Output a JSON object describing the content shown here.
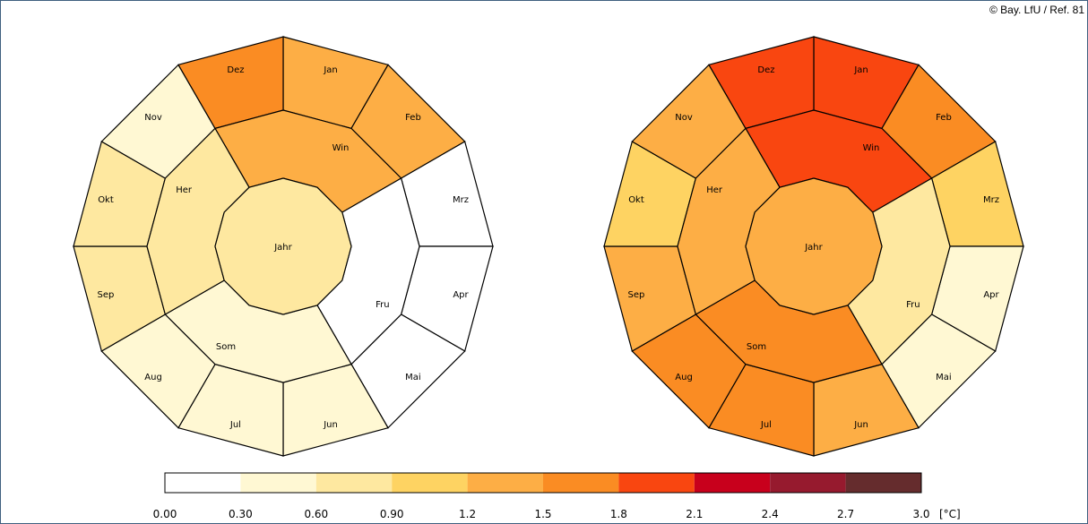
{
  "copyright": "© Bay. LfU / Ref. 81",
  "chart_data": {
    "type": "heatmap",
    "unit": "[°C]",
    "colorbar": {
      "ticks": [
        "0.00",
        "0.30",
        "0.60",
        "0.90",
        "1.2",
        "1.5",
        "1.8",
        "2.1",
        "2.4",
        "2.7",
        "3.0"
      ],
      "colors": [
        "#ffffff",
        "#fff8d3",
        "#fee8a0",
        "#fed362",
        "#fdae45",
        "#fa8c23",
        "#f94610",
        "#c8001c",
        "#961a2e",
        "#652c2d"
      ]
    },
    "panels": [
      {
        "months": [
          {
            "label": "Jan",
            "value": 1.35
          },
          {
            "label": "Feb",
            "value": 1.35
          },
          {
            "label": "Mrz",
            "value": 0.15
          },
          {
            "label": "Apr",
            "value": 0.15
          },
          {
            "label": "Mai",
            "value": 0.15
          },
          {
            "label": "Jun",
            "value": 0.45
          },
          {
            "label": "Jul",
            "value": 0.45
          },
          {
            "label": "Aug",
            "value": 0.45
          },
          {
            "label": "Sep",
            "value": 0.75
          },
          {
            "label": "Okt",
            "value": 0.75
          },
          {
            "label": "Nov",
            "value": 0.45
          },
          {
            "label": "Dez",
            "value": 1.65
          }
        ],
        "seasons": [
          {
            "label": "Win",
            "value": 1.35
          },
          {
            "label": "Fru",
            "value": 0.15
          },
          {
            "label": "Som",
            "value": 0.45
          },
          {
            "label": "Her",
            "value": 0.75
          }
        ],
        "year": {
          "label": "Jahr",
          "value": 0.75
        }
      },
      {
        "months": [
          {
            "label": "Jan",
            "value": 1.95
          },
          {
            "label": "Feb",
            "value": 1.65
          },
          {
            "label": "Mrz",
            "value": 1.05
          },
          {
            "label": "Apr",
            "value": 0.45
          },
          {
            "label": "Mai",
            "value": 0.45
          },
          {
            "label": "Jun",
            "value": 1.35
          },
          {
            "label": "Jul",
            "value": 1.65
          },
          {
            "label": "Aug",
            "value": 1.65
          },
          {
            "label": "Sep",
            "value": 1.35
          },
          {
            "label": "Okt",
            "value": 1.05
          },
          {
            "label": "Nov",
            "value": 1.35
          },
          {
            "label": "Dez",
            "value": 1.95
          }
        ],
        "seasons": [
          {
            "label": "Win",
            "value": 1.95
          },
          {
            "label": "Fru",
            "value": 0.75
          },
          {
            "label": "Som",
            "value": 1.65
          },
          {
            "label": "Her",
            "value": 1.35
          }
        ],
        "year": {
          "label": "Jahr",
          "value": 1.35
        }
      }
    ]
  }
}
